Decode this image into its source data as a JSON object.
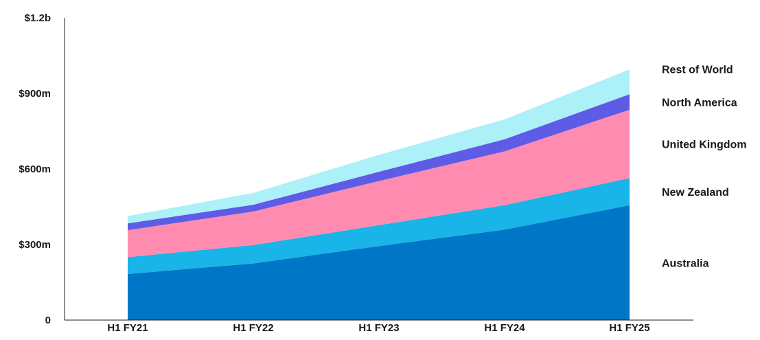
{
  "chart_data": {
    "type": "area",
    "stacked": true,
    "categories": [
      "H1 FY21",
      "H1 FY22",
      "H1 FY23",
      "H1 FY24",
      "H1 FY25"
    ],
    "y_ticks": [
      0,
      300,
      600,
      900,
      1200
    ],
    "y_tick_labels": [
      "0",
      "$300m",
      "$600m",
      "$900m",
      "$1.2b"
    ],
    "ylim": [
      0,
      1200
    ],
    "grid": false,
    "legend": "right, labels aligned to series",
    "series": [
      {
        "name": "Australia",
        "color": "#0076C6",
        "values": [
          183,
          225,
          294,
          359,
          456
        ]
      },
      {
        "name": "New Zealand",
        "color": "#19B4E8",
        "values": [
          67,
          73,
          83,
          97,
          108
        ]
      },
      {
        "name": "United Kingdom",
        "color": "#FF8CB0",
        "values": [
          107,
          133,
          175,
          214,
          271
        ]
      },
      {
        "name": "North America",
        "color": "#5E5CE6",
        "values": [
          27,
          27,
          37,
          48,
          62
        ]
      },
      {
        "name": "Rest of World",
        "color": "#ACF0F8",
        "values": [
          29,
          47,
          67,
          79,
          98
        ]
      }
    ]
  }
}
